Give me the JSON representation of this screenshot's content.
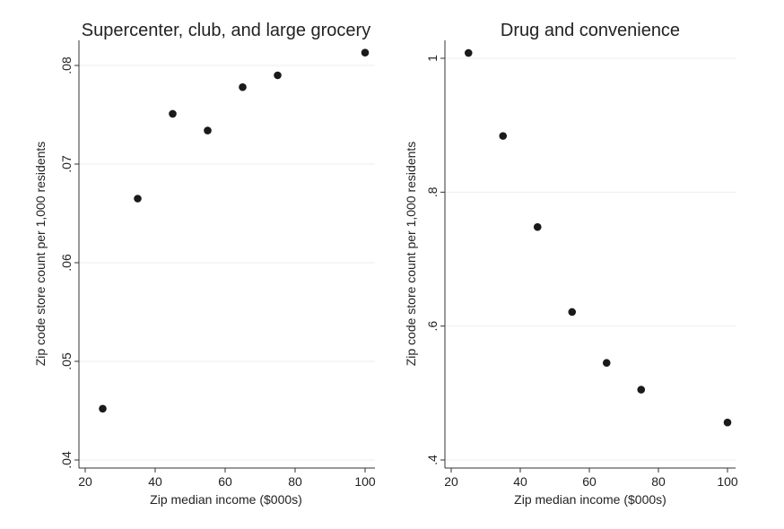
{
  "chart_data": [
    {
      "type": "scatter",
      "title": "Supercenter, club, and large grocery",
      "xlabel": "Zip median income ($000s)",
      "ylabel": "Zip code store count per 1,000 residents",
      "xlim": [
        18,
        103
      ],
      "ylim": [
        0.04,
        0.0825
      ],
      "xticks": [
        20,
        40,
        60,
        80,
        100
      ],
      "xtick_labels": [
        "20",
        "40",
        "60",
        "80",
        "100"
      ],
      "yticks": [
        0.04,
        0.05,
        0.06,
        0.07,
        0.08
      ],
      "ytick_labels": [
        ".04",
        ".05",
        ".06",
        ".07",
        ".08"
      ],
      "grid": true,
      "x": [
        25,
        35,
        45,
        55,
        65,
        75,
        100
      ],
      "y": [
        0.0452,
        0.0665,
        0.0751,
        0.0734,
        0.0778,
        0.079,
        0.0813
      ]
    },
    {
      "type": "scatter",
      "title": "Drug and convenience",
      "xlabel": "Zip median income ($000s)",
      "ylabel": "Zip code store count per 1,000 residents",
      "xlim": [
        18,
        103
      ],
      "ylim": [
        0.4,
        1.02
      ],
      "xticks": [
        20,
        40,
        60,
        80,
        100
      ],
      "xtick_labels": [
        "20",
        "40",
        "60",
        "80",
        "100"
      ],
      "yticks": [
        0.4,
        0.6,
        0.8,
        1.0
      ],
      "ytick_labels": [
        ".4",
        ".6",
        ".8",
        "1"
      ],
      "grid": true,
      "x": [
        25,
        35,
        45,
        55,
        65,
        75,
        100
      ],
      "y": [
        1.008,
        0.884,
        0.748,
        0.621,
        0.545,
        0.505,
        0.456
      ]
    }
  ]
}
